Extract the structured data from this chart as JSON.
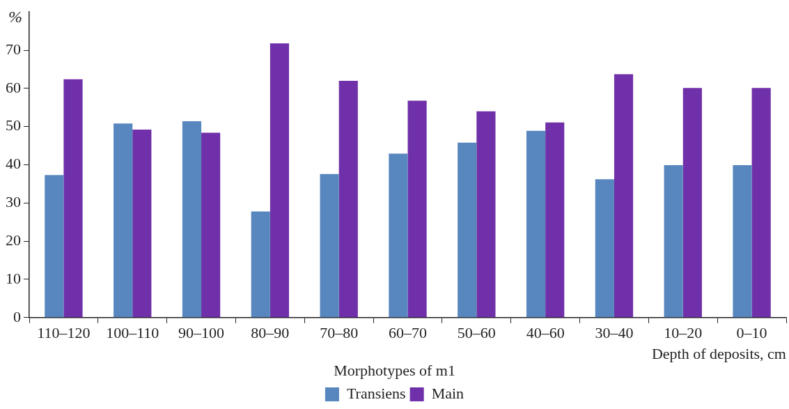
{
  "chart_data": {
    "type": "bar",
    "xlabel": "Depth of deposits, cm",
    "ylabel": "%",
    "legend_title": "Morphotypes of m1",
    "categories": [
      "110–120",
      "100–110",
      "90–100",
      "80–90",
      "70–80",
      "60–70",
      "50–60",
      "40–60",
      "30–40",
      "10–20",
      "0–10"
    ],
    "series": [
      {
        "name": "Transiens",
        "color": "#5886be",
        "values": [
          37.3,
          50.8,
          51.4,
          27.8,
          37.6,
          42.9,
          45.8,
          48.9,
          36.2,
          39.9,
          39.9
        ]
      },
      {
        "name": "Main",
        "color": "#7030a9",
        "values": [
          62.4,
          49.2,
          48.4,
          71.8,
          62.0,
          56.8,
          54.0,
          51.1,
          63.7,
          60.1,
          60.1
        ]
      }
    ],
    "ylim": [
      0,
      80
    ],
    "yticks": [
      0,
      10,
      20,
      30,
      40,
      50,
      60,
      70
    ],
    "grid": false,
    "legend": "bottom"
  }
}
